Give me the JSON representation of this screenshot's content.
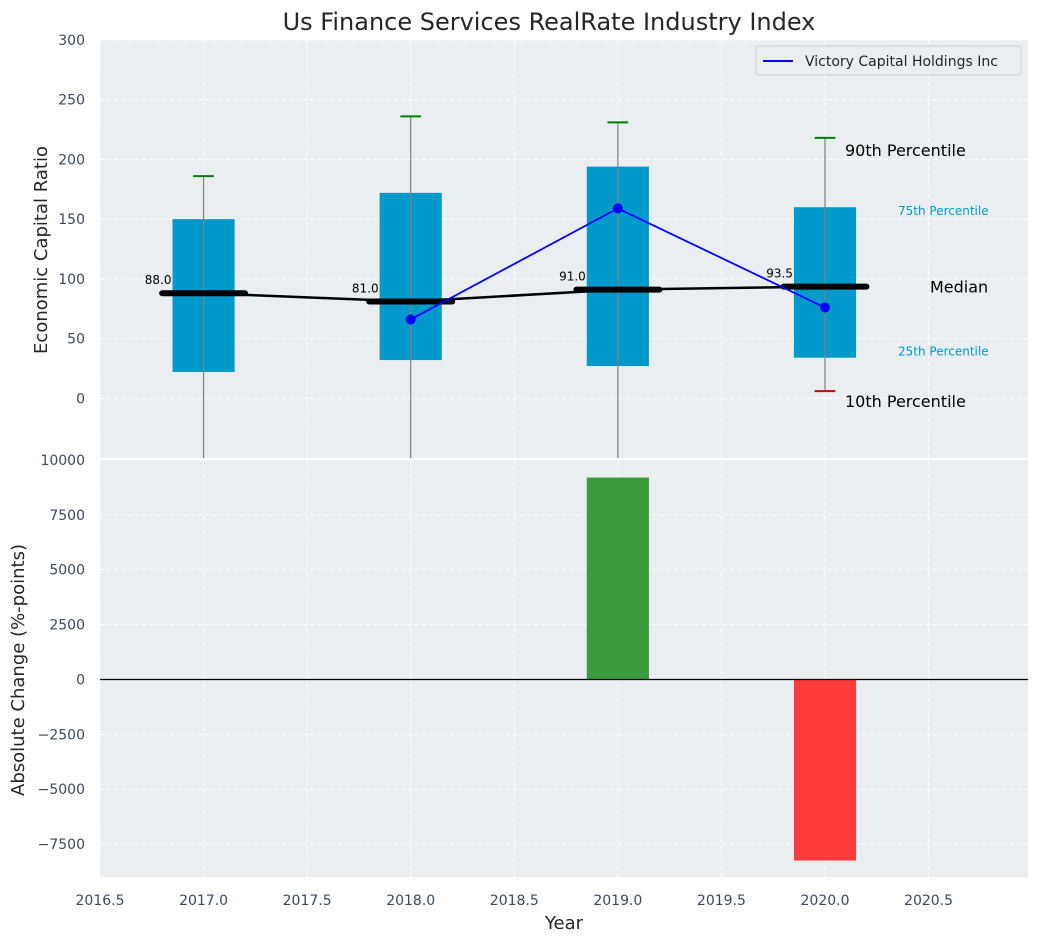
{
  "chart_data": [
    {
      "type": "box",
      "title": "Us Finance Services RealRate Industry Index",
      "xlabel": "",
      "ylabel": "Economic Capital Ratio",
      "xlim": [
        2016.5,
        2020.98
      ],
      "ylim": [
        -50,
        300
      ],
      "yticks": [
        0,
        50,
        100,
        150,
        200,
        250,
        300
      ],
      "grid": true,
      "legend": {
        "position": "top-right",
        "entries": [
          "Victory Capital Holdings Inc"
        ]
      },
      "years": [
        2017,
        2018,
        2019,
        2020
      ],
      "boxes": [
        {
          "year": 2017,
          "p10": -50,
          "p25": 22,
          "median": 88.0,
          "p75": 150,
          "p90": 186
        },
        {
          "year": 2018,
          "p10": -50,
          "p25": 32,
          "median": 81.0,
          "p75": 172,
          "p90": 236
        },
        {
          "year": 2019,
          "p10": -50,
          "p25": 27,
          "median": 91.0,
          "p75": 194,
          "p90": 231
        },
        {
          "year": 2020,
          "p10": 6,
          "p25": 34,
          "median": 93.5,
          "p75": 160,
          "p90": 218
        }
      ],
      "median_labels": [
        "88.0",
        "81.0",
        "91.0",
        "93.5"
      ],
      "series": [
        {
          "name": "Victory Capital Holdings Inc",
          "x": [
            2018,
            2019,
            2020
          ],
          "values": [
            66,
            159,
            76
          ]
        }
      ],
      "annotations": {
        "p90": "90th Percentile",
        "p75": "75th Percentile",
        "median": "Median",
        "p25": "25th Percentile",
        "p10": "10th Percentile"
      },
      "colors": {
        "box": "#0099cc",
        "median": "#000000",
        "series": "#0000ff",
        "p90_cap": "#008000",
        "p10_cap": "#cc0000",
        "whisker": "#808080"
      }
    },
    {
      "type": "bar",
      "xlabel": "Year",
      "ylabel": "Absolute Change (%-points)",
      "xlim": [
        2016.5,
        2020.98
      ],
      "ylim": [
        -9000,
        10000
      ],
      "xticks": [
        2016.5,
        2017.0,
        2017.5,
        2018.0,
        2018.5,
        2019.0,
        2019.5,
        2020.0,
        2020.5
      ],
      "xtick_labels": [
        "2016.5",
        "2017.0",
        "2017.5",
        "2018.0",
        "2018.5",
        "2019.0",
        "2019.5",
        "2020.0",
        "2020.5"
      ],
      "yticks": [
        -7500,
        -5000,
        -2500,
        0,
        2500,
        5000,
        7500,
        10000
      ],
      "ytick_labels": [
        "−7500",
        "−5000",
        "−2500",
        "0",
        "2500",
        "5000",
        "7500",
        "10000"
      ],
      "grid": true,
      "x": [
        2019,
        2020
      ],
      "values": [
        9200,
        -8250
      ],
      "colors": {
        "positive": "#3a9c3c",
        "negative": "#ff3b3b"
      }
    }
  ]
}
